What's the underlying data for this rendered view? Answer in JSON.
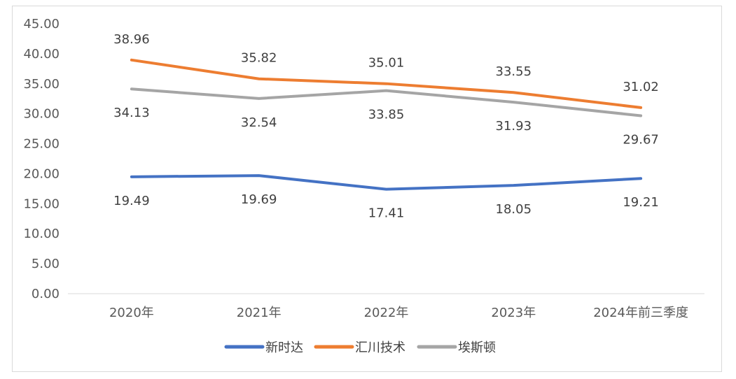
{
  "chart_data": {
    "type": "line",
    "title": "",
    "xlabel": "",
    "ylabel": "",
    "categories": [
      "2020年",
      "2021年",
      "2022年",
      "2023年",
      "2024年前三季度"
    ],
    "ylim": [
      0,
      45
    ],
    "yticks": [
      "0.00",
      "5.00",
      "10.00",
      "15.00",
      "20.00",
      "25.00",
      "30.00",
      "35.00",
      "40.00",
      "45.00"
    ],
    "grid": false,
    "legend": "bottom",
    "series": [
      {
        "name": "新时达",
        "color": "#4472C4",
        "values": [
          19.49,
          19.69,
          17.41,
          18.05,
          19.21
        ],
        "labels": [
          "19.49",
          "19.69",
          "17.41",
          "18.05",
          "19.21"
        ],
        "label_pos": "below"
      },
      {
        "name": "汇川技术",
        "color": "#ED7D31",
        "values": [
          38.96,
          35.82,
          35.01,
          33.55,
          31.02
        ],
        "labels": [
          "38.96",
          "35.82",
          "35.01",
          "33.55",
          "31.02"
        ],
        "label_pos": "above"
      },
      {
        "name": "埃斯顿",
        "color": "#A5A5A5",
        "values": [
          34.13,
          32.54,
          33.85,
          31.93,
          29.67
        ],
        "labels": [
          "34.13",
          "32.54",
          "33.85",
          "31.93",
          "29.67"
        ],
        "label_pos": "below"
      }
    ]
  }
}
